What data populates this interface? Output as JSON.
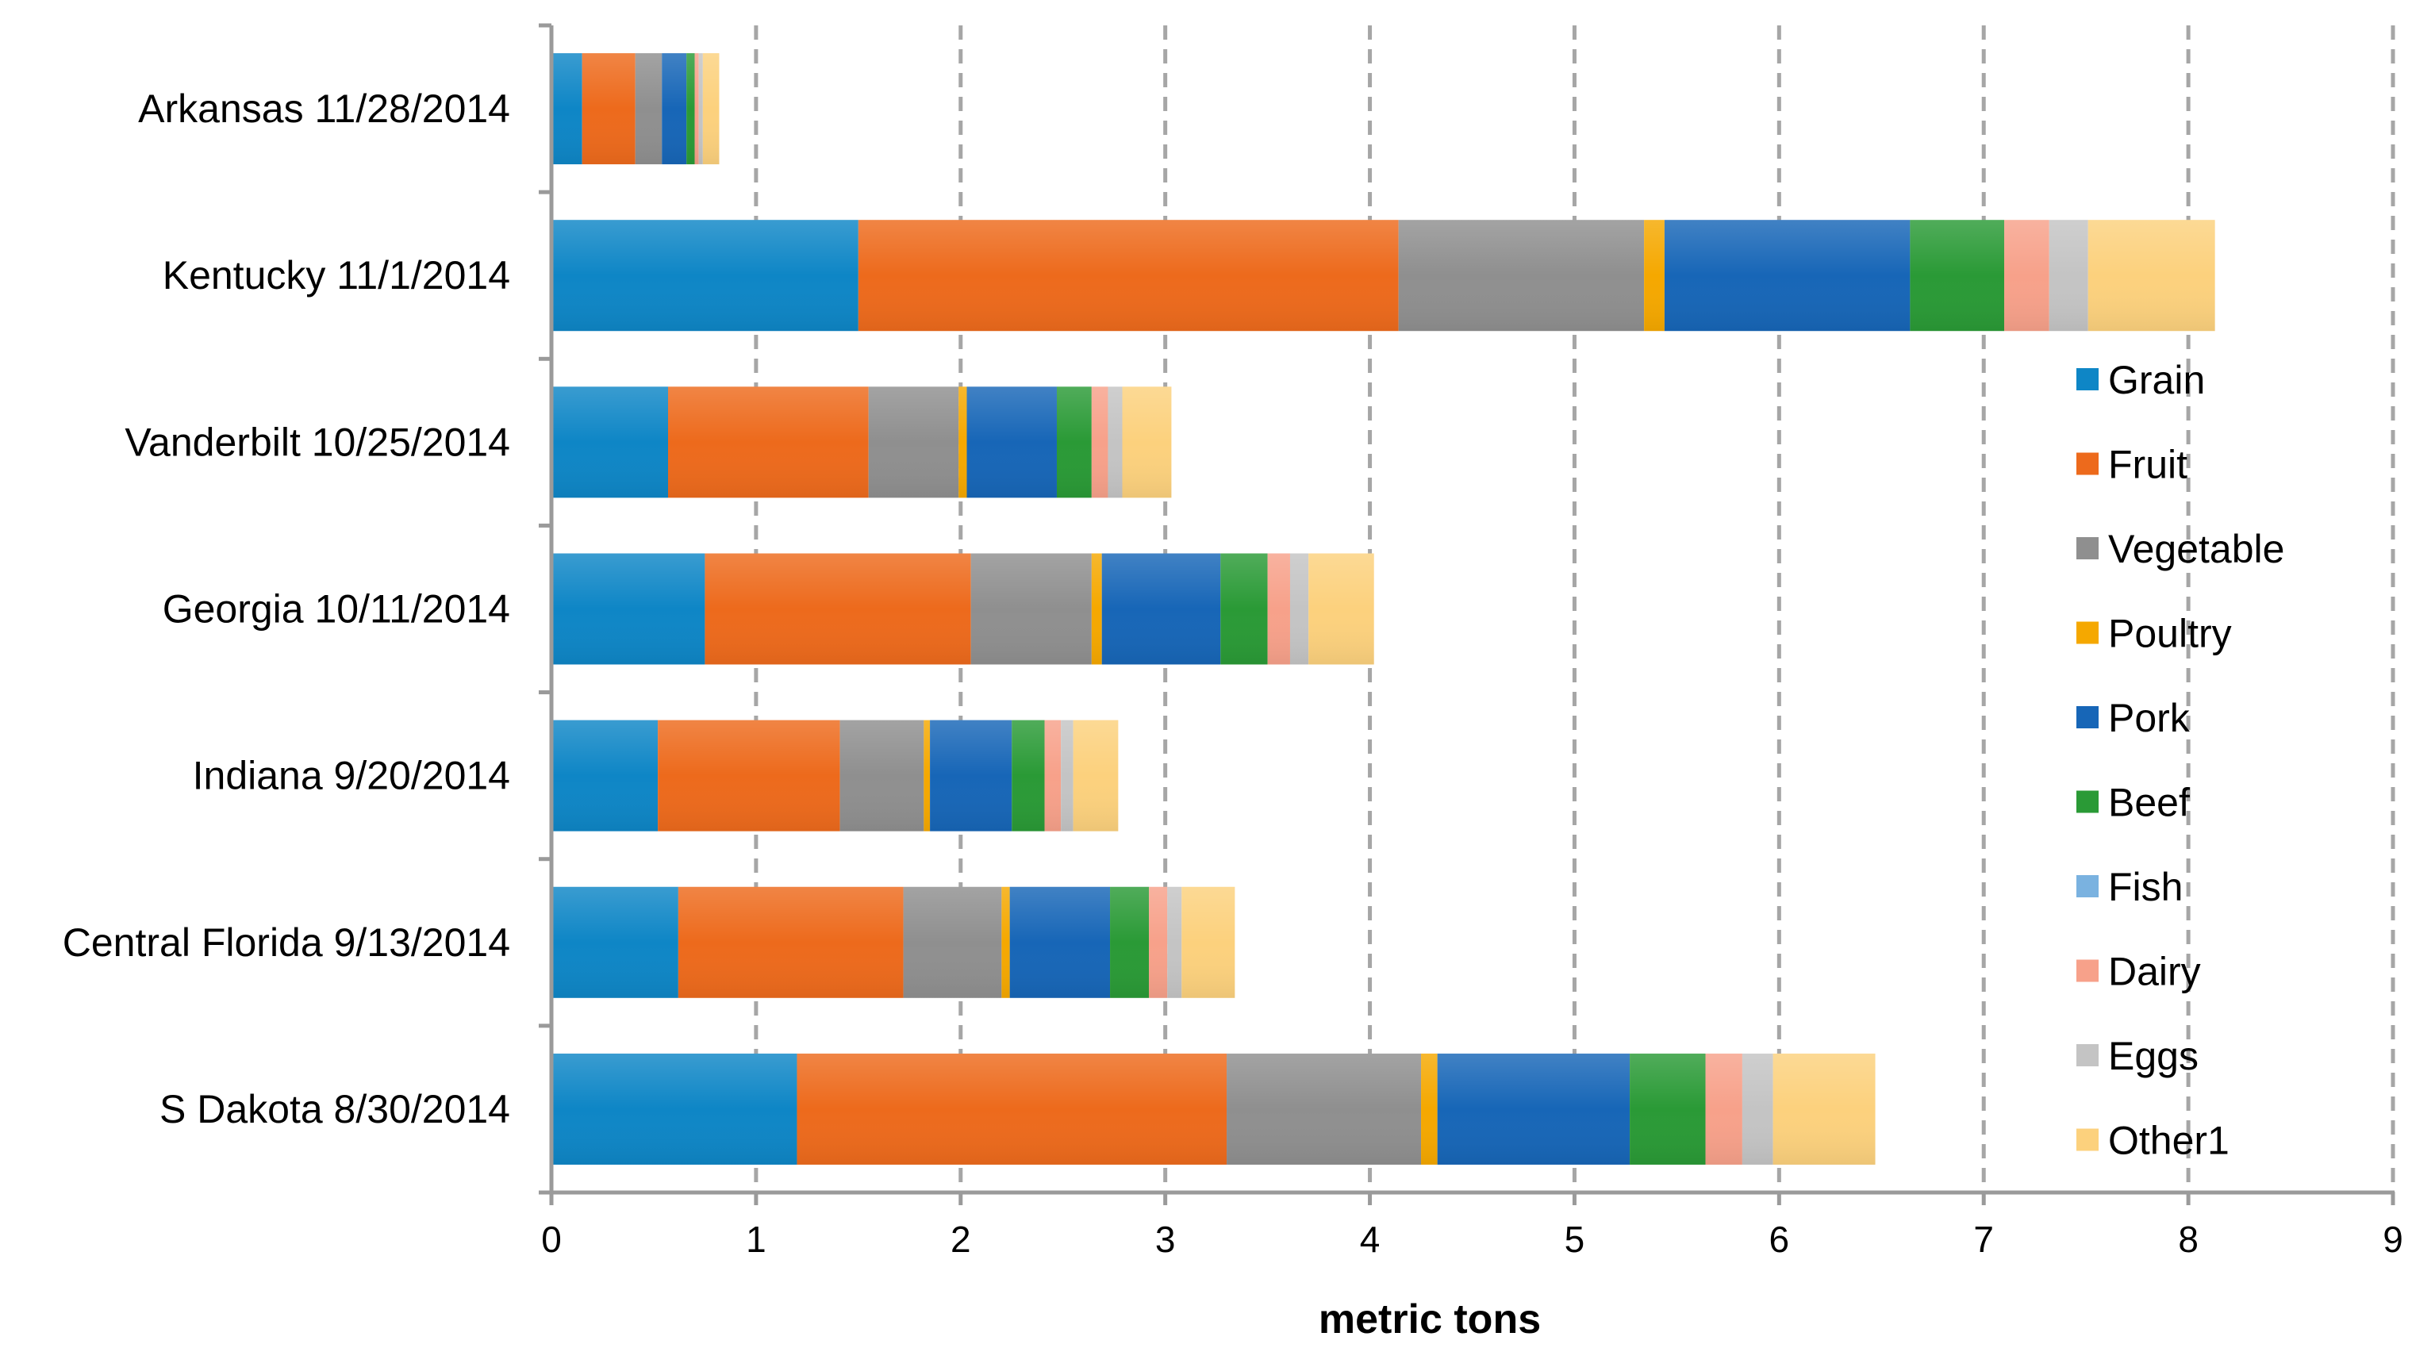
{
  "chart_data": {
    "type": "bar",
    "orientation": "horizontal",
    "stacked": true,
    "title": "",
    "xlabel": "metric tons",
    "ylabel": "",
    "xlim": [
      0,
      9
    ],
    "x_ticks": [
      0,
      1,
      2,
      3,
      4,
      5,
      6,
      7,
      8,
      9
    ],
    "grid": "vertical dashed",
    "legend_position": "right",
    "categories": [
      "Arkansas 11/28/2014",
      "Kentucky 11/1/2014",
      "Vanderbilt 10/25/2014",
      "Georgia 10/11/2014",
      "Indiana 9/20/2014",
      "Central Florida 9/13/2014",
      "S Dakota 8/30/2014"
    ],
    "series": [
      {
        "name": "Grain",
        "color": "#0e86c6",
        "values": [
          0.15,
          1.5,
          0.57,
          0.75,
          0.52,
          0.62,
          1.2
        ]
      },
      {
        "name": "Fruit",
        "color": "#ed6a1c",
        "values": [
          0.26,
          2.64,
          0.98,
          1.3,
          0.89,
          1.1,
          2.1
        ]
      },
      {
        "name": "Vegetable",
        "color": "#8f8f8f",
        "values": [
          0.13,
          1.2,
          0.44,
          0.59,
          0.41,
          0.48,
          0.95
        ]
      },
      {
        "name": "Poultry",
        "color": "#f5a800",
        "values": [
          0.0,
          0.1,
          0.04,
          0.05,
          0.03,
          0.04,
          0.08
        ]
      },
      {
        "name": "Pork",
        "color": "#1766b7",
        "values": [
          0.12,
          1.2,
          0.44,
          0.58,
          0.4,
          0.49,
          0.94
        ]
      },
      {
        "name": "Beef",
        "color": "#2a9a36",
        "values": [
          0.04,
          0.46,
          0.17,
          0.23,
          0.16,
          0.19,
          0.37
        ]
      },
      {
        "name": "Fish",
        "color": "#7ab2e0",
        "values": [
          0.0,
          0.0,
          0.0,
          0.0,
          0.0,
          0.0,
          0.0
        ]
      },
      {
        "name": "Dairy",
        "color": "#f7a18a",
        "values": [
          0.02,
          0.22,
          0.08,
          0.11,
          0.08,
          0.09,
          0.18
        ]
      },
      {
        "name": "Eggs",
        "color": "#c4c4c4",
        "values": [
          0.02,
          0.19,
          0.07,
          0.09,
          0.06,
          0.07,
          0.15
        ]
      },
      {
        "name": "Other1",
        "color": "#fcd17d",
        "values": [
          0.08,
          0.62,
          0.24,
          0.32,
          0.22,
          0.26,
          0.5
        ]
      }
    ]
  }
}
